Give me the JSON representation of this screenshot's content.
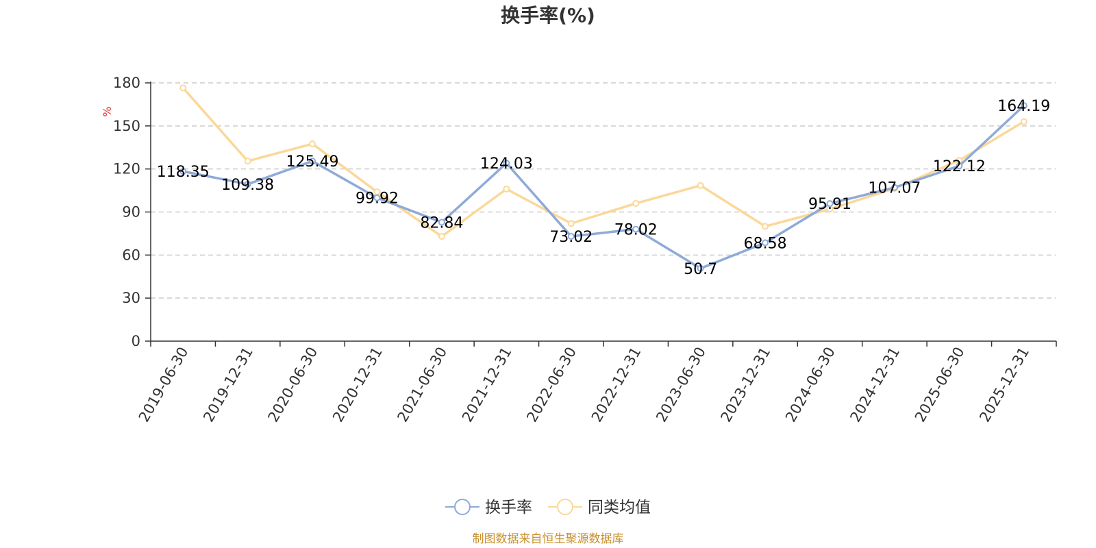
{
  "chart_data": {
    "type": "line",
    "title": "换手率(%)",
    "ylabel": "%",
    "ylim": [
      0,
      180
    ],
    "yticks": [
      0,
      30,
      60,
      90,
      120,
      150,
      180
    ],
    "grid": "horizontal-dashed",
    "categories": [
      "2019-06-30",
      "2019-12-31",
      "2020-06-30",
      "2020-12-31",
      "2021-06-30",
      "2021-12-31",
      "2022-06-30",
      "2022-12-31",
      "2023-06-30",
      "2023-12-31",
      "2024-06-30",
      "2024-12-31",
      "2025-06-30",
      "2025-12-31"
    ],
    "series": [
      {
        "name": "换手率",
        "color": "#8eaad8",
        "values": [
          118.35,
          109.38,
          125.49,
          99.92,
          82.84,
          124.03,
          73.02,
          78.02,
          50.7,
          68.58,
          95.91,
          107.07,
          122.12,
          164.19
        ],
        "labels": [
          "118.35",
          "109.38",
          "125.49",
          "99.92",
          "82.84",
          "124.03",
          "73.02",
          "78.02",
          "50.7",
          "68.58",
          "95.91",
          "107.07",
          "122.12",
          "164.19"
        ]
      },
      {
        "name": "同类均值",
        "color": "#fbd898",
        "values": [
          176.5,
          125.5,
          137.5,
          104.0,
          73.0,
          106.0,
          82.0,
          96.0,
          108.5,
          80.0,
          92.0,
          106.5,
          126.0,
          153.0
        ]
      }
    ],
    "legend_position": "bottom-center",
    "unit_color": "#e8302f"
  },
  "footer": {
    "source": "制图数据来自恒生聚源数据库",
    "color": "#c8902e"
  }
}
